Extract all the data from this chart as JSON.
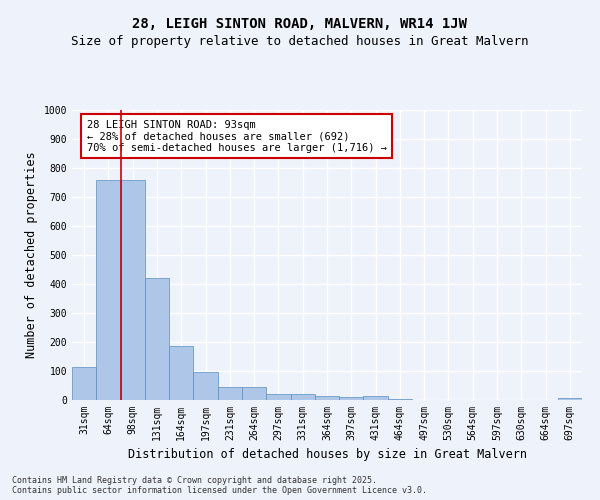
{
  "title_line1": "28, LEIGH SINTON ROAD, MALVERN, WR14 1JW",
  "title_line2": "Size of property relative to detached houses in Great Malvern",
  "xlabel": "Distribution of detached houses by size in Great Malvern",
  "ylabel": "Number of detached properties",
  "categories": [
    "31sqm",
    "64sqm",
    "98sqm",
    "131sqm",
    "164sqm",
    "197sqm",
    "231sqm",
    "264sqm",
    "297sqm",
    "331sqm",
    "364sqm",
    "397sqm",
    "431sqm",
    "464sqm",
    "497sqm",
    "530sqm",
    "564sqm",
    "597sqm",
    "630sqm",
    "664sqm",
    "697sqm"
  ],
  "values": [
    115,
    760,
    760,
    420,
    185,
    97,
    44,
    44,
    20,
    22,
    14,
    10,
    14,
    3,
    1,
    1,
    0,
    0,
    0,
    0,
    7
  ],
  "bar_color": "#aec6e8",
  "bar_edge_color": "#5a8fc0",
  "vline_pos": 1.5,
  "vline_color": "#cc0000",
  "annotation_text": "28 LEIGH SINTON ROAD: 93sqm\n← 28% of detached houses are smaller (692)\n70% of semi-detached houses are larger (1,716) →",
  "annotation_box_color": "#ffffff",
  "annotation_box_edge": "#cc0000",
  "ylim": [
    0,
    1000
  ],
  "yticks": [
    0,
    100,
    200,
    300,
    400,
    500,
    600,
    700,
    800,
    900,
    1000
  ],
  "footer": "Contains HM Land Registry data © Crown copyright and database right 2025.\nContains public sector information licensed under the Open Government Licence v3.0.",
  "bg_color": "#eef2fa",
  "plot_bg_color": "#eef2fa",
  "grid_color": "#ffffff",
  "title_fontsize": 10,
  "subtitle_fontsize": 9,
  "tick_fontsize": 7,
  "label_fontsize": 8.5,
  "annot_fontsize": 7.5
}
